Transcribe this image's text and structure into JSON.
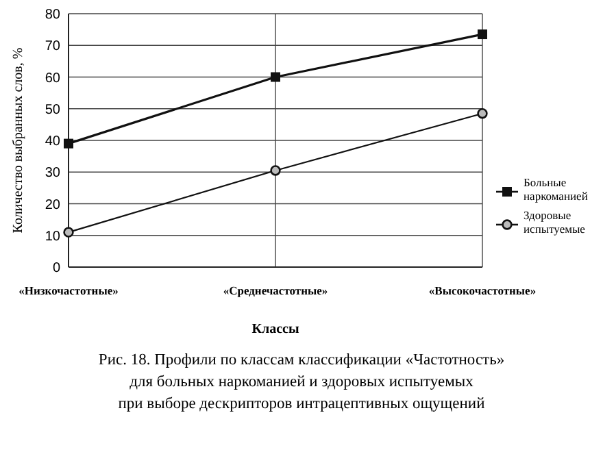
{
  "chart_data": {
    "type": "line",
    "title": "Рис. 18. Профили по классам классификации «Частотность»\nдля больных наркоманией и здоровых испытуемых\nпри выборе дескрипторов интрацептивных ощущений",
    "xlabel": "Классы",
    "ylabel": "Количество выбранных слов, %",
    "categories": [
      "«Низкочастотные»",
      "«Среднечастотные»",
      "«Высокочастотные»"
    ],
    "series": [
      {
        "name": "Больные наркоманией",
        "color": "#111111",
        "marker": "square",
        "values": [
          39,
          60,
          73.5
        ]
      },
      {
        "name": "Здоровые испытуемые",
        "color": "#111111",
        "marker": "circle",
        "values": [
          11,
          30.5,
          48.5
        ]
      }
    ],
    "ylim": [
      0,
      80
    ],
    "yticks": [
      0,
      10,
      20,
      30,
      40,
      50,
      60,
      70,
      80
    ],
    "grid": true,
    "legend": "right"
  }
}
